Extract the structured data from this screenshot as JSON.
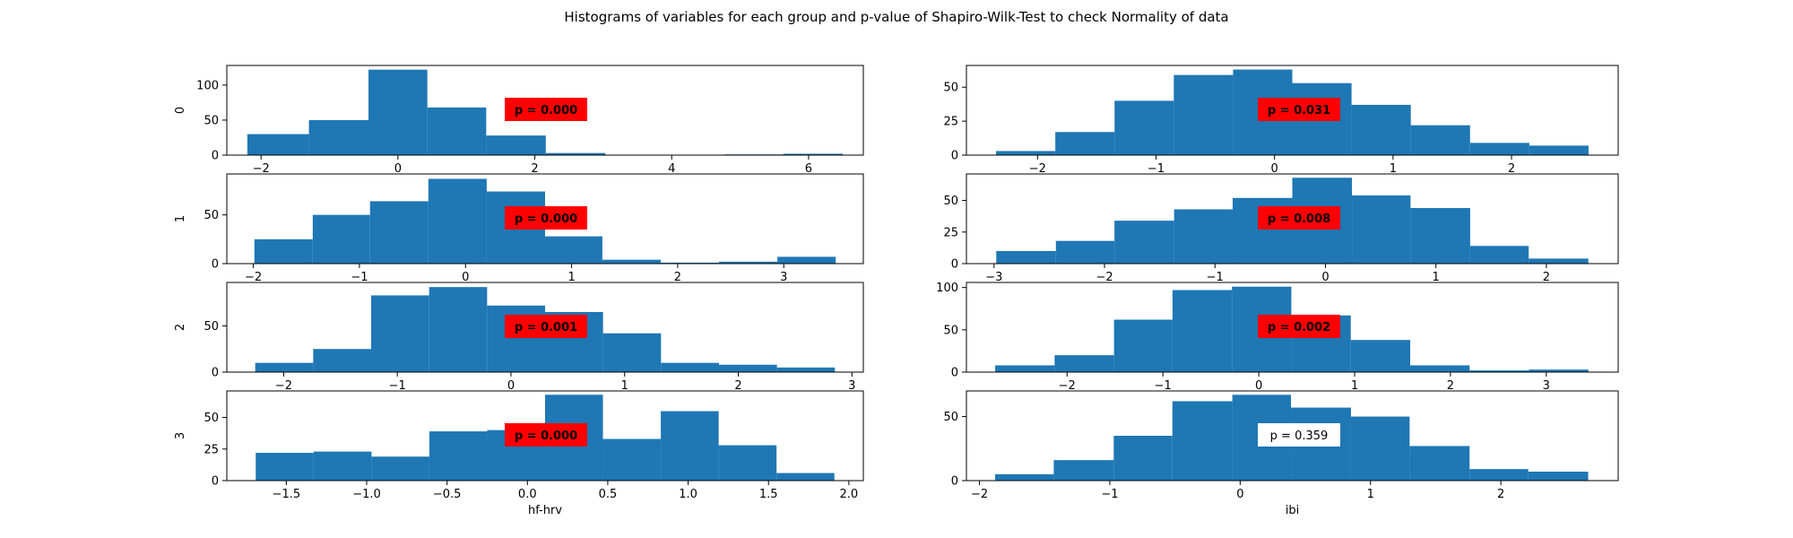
{
  "figure": {
    "title": "Histograms of variables for each group and p-value of Shapiro-Wilk-Test to check Normality of data"
  },
  "colors": {
    "bar": "#1f77b4",
    "significant_box": "#ff0000",
    "nonsignificant_box": "#ffffff"
  },
  "chart_data": [
    {
      "type": "bar",
      "variable": "hf-hrv",
      "group": "0",
      "row": 0,
      "col": 0,
      "ylabel": "0",
      "xlabel": "",
      "bin_edges": [
        -2.2,
        -1.3,
        -0.43,
        0.43,
        1.29,
        2.16,
        3.03,
        3.9,
        4.77,
        5.63,
        6.5
      ],
      "counts": [
        30,
        50,
        122,
        68,
        28,
        3,
        0,
        0,
        1,
        2
      ],
      "xlim": [
        -2.5,
        6.8
      ],
      "ylim": [
        0,
        128
      ],
      "xticks": [
        -2,
        0,
        2,
        4,
        6
      ],
      "xtick_labels": [
        "−2",
        "0",
        "2",
        "4",
        "6"
      ],
      "yticks": [
        0,
        50,
        100
      ],
      "ytick_labels": [
        "0",
        "50",
        "100"
      ],
      "p_label": "p = 0.000",
      "significant": true
    },
    {
      "type": "bar",
      "variable": "ibi",
      "group": "0",
      "row": 0,
      "col": 1,
      "ylabel": "",
      "xlabel": "",
      "bin_edges": [
        -2.35,
        -1.85,
        -1.35,
        -0.85,
        -0.35,
        0.15,
        0.65,
        1.15,
        1.65,
        2.15,
        2.65
      ],
      "counts": [
        3,
        17,
        40,
        59,
        63,
        53,
        37,
        22,
        9,
        7
      ],
      "xlim": [
        -2.6,
        2.9
      ],
      "ylim": [
        0,
        66
      ],
      "xticks": [
        -2,
        -1,
        0,
        1,
        2
      ],
      "xtick_labels": [
        "−2",
        "−1",
        "0",
        "1",
        "2"
      ],
      "yticks": [
        0,
        25,
        50
      ],
      "ytick_labels": [
        "0",
        "25",
        "50"
      ],
      "p_label": "p = 0.031",
      "significant": true
    },
    {
      "type": "bar",
      "variable": "hf-hrv",
      "group": "1",
      "row": 1,
      "col": 0,
      "ylabel": "1",
      "xlabel": "",
      "bin_edges": [
        -1.99,
        -1.44,
        -0.9,
        -0.35,
        0.2,
        0.75,
        1.29,
        1.84,
        2.39,
        2.94,
        3.49
      ],
      "counts": [
        25,
        50,
        64,
        87,
        74,
        28,
        4,
        1,
        2,
        7
      ],
      "xlim": [
        -2.25,
        3.75
      ],
      "ylim": [
        0,
        92
      ],
      "xticks": [
        -2,
        -1,
        0,
        1,
        2,
        3
      ],
      "xtick_labels": [
        "−2",
        "−1",
        "0",
        "1",
        "2",
        "3"
      ],
      "yticks": [
        0,
        50
      ],
      "ytick_labels": [
        "0",
        "50"
      ],
      "p_label": "p = 0.000",
      "significant": true
    },
    {
      "type": "bar",
      "variable": "ibi",
      "group": "1",
      "row": 1,
      "col": 1,
      "ylabel": "",
      "xlabel": "",
      "bin_edges": [
        -2.98,
        -2.44,
        -1.91,
        -1.37,
        -0.84,
        -0.3,
        0.24,
        0.77,
        1.31,
        1.84,
        2.38
      ],
      "counts": [
        10,
        18,
        34,
        43,
        52,
        68,
        54,
        44,
        14,
        4
      ],
      "xlim": [
        -3.25,
        2.65
      ],
      "ylim": [
        0,
        71
      ],
      "xticks": [
        -3,
        -2,
        -1,
        0,
        1,
        2
      ],
      "xtick_labels": [
        "−3",
        "−2",
        "−1",
        "0",
        "1",
        "2"
      ],
      "yticks": [
        0,
        25,
        50
      ],
      "ytick_labels": [
        "0",
        "25",
        "50"
      ],
      "p_label": "p = 0.008",
      "significant": true
    },
    {
      "type": "bar",
      "variable": "hf-hrv",
      "group": "2",
      "row": 2,
      "col": 0,
      "ylabel": "2",
      "xlabel": "",
      "bin_edges": [
        -2.25,
        -1.74,
        -1.23,
        -0.72,
        -0.21,
        0.3,
        0.81,
        1.32,
        1.83,
        2.34,
        2.85
      ],
      "counts": [
        10,
        25,
        83,
        92,
        72,
        65,
        42,
        10,
        8,
        5
      ],
      "xlim": [
        -2.5,
        3.1
      ],
      "ylim": [
        0,
        97
      ],
      "xticks": [
        -2,
        -1,
        0,
        1,
        2,
        3
      ],
      "xtick_labels": [
        "−2",
        "−1",
        "0",
        "1",
        "2",
        "3"
      ],
      "yticks": [
        0,
        50
      ],
      "ytick_labels": [
        "0",
        "50"
      ],
      "p_label": "p = 0.001",
      "significant": true
    },
    {
      "type": "bar",
      "variable": "ibi",
      "group": "2",
      "row": 2,
      "col": 1,
      "ylabel": "",
      "xlabel": "",
      "bin_edges": [
        -2.75,
        -2.13,
        -1.51,
        -0.9,
        -0.28,
        0.34,
        0.96,
        1.58,
        2.2,
        2.82,
        3.44
      ],
      "counts": [
        8,
        20,
        62,
        97,
        101,
        67,
        38,
        8,
        2,
        3
      ],
      "xlim": [
        -3.05,
        3.75
      ],
      "ylim": [
        0,
        106
      ],
      "xticks": [
        -2,
        -1,
        0,
        1,
        2,
        3
      ],
      "xtick_labels": [
        "−2",
        "−1",
        "0",
        "1",
        "2",
        "3"
      ],
      "yticks": [
        0,
        50,
        100
      ],
      "ytick_labels": [
        "0",
        "50",
        "100"
      ],
      "p_label": "p = 0.002",
      "significant": true
    },
    {
      "type": "bar",
      "variable": "hf-hrv",
      "group": "3",
      "row": 3,
      "col": 0,
      "ylabel": "3",
      "xlabel": "hf-hrv",
      "bin_edges": [
        -1.69,
        -1.33,
        -0.97,
        -0.61,
        -0.25,
        0.11,
        0.47,
        0.83,
        1.19,
        1.55,
        1.91
      ],
      "counts": [
        22,
        23,
        19,
        39,
        40,
        68,
        33,
        55,
        28,
        6
      ],
      "xlim": [
        -1.87,
        2.09
      ],
      "ylim": [
        0,
        71
      ],
      "xticks": [
        -1.5,
        -1.0,
        -0.5,
        0.0,
        0.5,
        1.0,
        1.5,
        2.0
      ],
      "xtick_labels": [
        "−1.5",
        "−1.0",
        "−0.5",
        "0.0",
        "0.5",
        "1.0",
        "1.5",
        "2.0"
      ],
      "yticks": [
        0,
        25,
        50
      ],
      "ytick_labels": [
        "0",
        "25",
        "50"
      ],
      "p_label": "p = 0.000",
      "significant": true
    },
    {
      "type": "bar",
      "variable": "ibi",
      "group": "3",
      "row": 3,
      "col": 1,
      "ylabel": "",
      "xlabel": "ibi",
      "bin_edges": [
        -1.88,
        -1.43,
        -0.97,
        -0.52,
        -0.06,
        0.39,
        0.85,
        1.3,
        1.76,
        2.21,
        2.67
      ],
      "counts": [
        5,
        16,
        35,
        62,
        67,
        57,
        50,
        27,
        9,
        7
      ],
      "xlim": [
        -2.1,
        2.9
      ],
      "ylim": [
        0,
        70
      ],
      "xticks": [
        -2,
        -1,
        0,
        1,
        2
      ],
      "xtick_labels": [
        "−2",
        "−1",
        "0",
        "1",
        "2"
      ],
      "yticks": [
        0,
        50
      ],
      "ytick_labels": [
        "0",
        "50"
      ],
      "p_label": "p = 0.359",
      "significant": false
    }
  ]
}
